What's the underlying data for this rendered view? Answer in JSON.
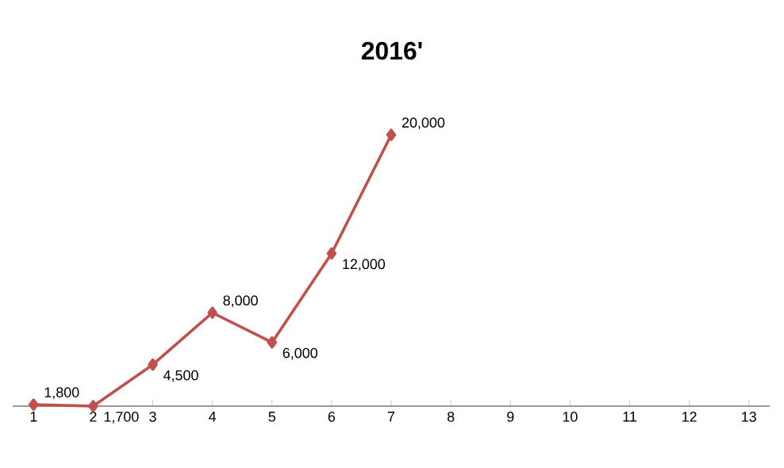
{
  "chart_data": {
    "type": "line",
    "title": "2016'",
    "categories": [
      "1",
      "2",
      "3",
      "4",
      "5",
      "6",
      "7",
      "8",
      "9",
      "10",
      "11",
      "12",
      "13"
    ],
    "values": [
      1800,
      1700,
      4500,
      8000,
      6000,
      12000,
      20000,
      null,
      null,
      null,
      null,
      null,
      null
    ],
    "value_labels": [
      "1,800",
      "1,700",
      "4,500",
      "8,000",
      "6,000",
      "12,000",
      "20,000",
      null,
      null,
      null,
      null,
      null,
      null
    ],
    "color": "#c0504d",
    "marker": "diamond",
    "line_style": "solid",
    "tick_labels": "x",
    "grid": false
  }
}
